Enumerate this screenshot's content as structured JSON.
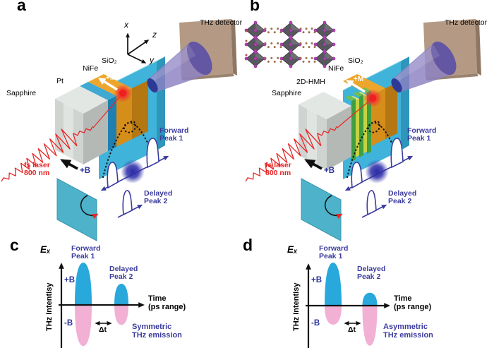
{
  "panels": {
    "a": {
      "letter": "a",
      "thz_detector": "THz detector",
      "axes": {
        "x": "x",
        "y": "y",
        "z": "z"
      },
      "layers": {
        "sio2": "SiO₂",
        "nife": "NiFe",
        "pt": "Pt",
        "sapphire": "Sapphire"
      },
      "magnetization": "+M",
      "laser": [
        "fs laser",
        "800 nm"
      ],
      "field": "+B",
      "forward_peak": [
        "Forward",
        "Peak 1"
      ],
      "delayed_peak": [
        "Delayed",
        "Peak 2"
      ]
    },
    "b": {
      "letter": "b",
      "thz_detector": "THz detector",
      "layers": {
        "sio2": "SiO₂",
        "nife": "NiFe",
        "hmh": "2D-HMH",
        "sapphire": "Sapphire"
      },
      "magnetization": "+M",
      "laser": [
        "fs laser",
        "800 nm"
      ],
      "field": "+B",
      "forward_peak": [
        "Forward",
        "Peak 1"
      ],
      "delayed_peak": [
        "Delayed",
        "Peak 2"
      ]
    },
    "c": {
      "letter": "c",
      "e_field": "Eₓ",
      "ylabel": "THz Intentisy",
      "plus_b": "+B",
      "minus_b": "-B",
      "time": [
        "Time",
        "(ps range)"
      ],
      "delta_t": "Δt",
      "caption": [
        "Symmetric",
        "THz emission"
      ],
      "forward_peak": [
        "Forward",
        "Peak 1"
      ],
      "delayed_peak": [
        "Delayed",
        "Peak 2"
      ]
    },
    "d": {
      "letter": "d",
      "e_field": "Eₓ",
      "ylabel": "THz Intentisy",
      "plus_b": "+B",
      "minus_b": "-B",
      "time": [
        "Time",
        "(ps range)"
      ],
      "delta_t": "Δt",
      "caption": [
        "Asymmetric",
        "THz emission"
      ],
      "forward_peak": [
        "Forward",
        "Peak 1"
      ],
      "delayed_peak": [
        "Delayed",
        "Peak 2"
      ]
    }
  },
  "colors": {
    "sapphire_gray": "#cfd4d1",
    "pt_blue": "#1e7fb0",
    "nife_orange": "#d68e1b",
    "sio2_cyan": "#3fb3d9",
    "hmh_green": "#3f9f40",
    "hmh_yellow_green": "#c6d243",
    "detector_tan": "#b49a85",
    "cone_purple": "#8b80c2",
    "laser_red": "#e62626",
    "pulse_indigo": "#3c3c9e",
    "field_navy": "#2c35a0",
    "peak_cyan": "#29a8dc",
    "peak_pink": "#f2b0d4"
  },
  "chart_data": [
    {
      "type": "area",
      "panel": "c",
      "title": "Symmetric THz emission",
      "xlabel": "Time (ps range)",
      "ylabel": "THz Intentisy",
      "y_axis_symbol": "Eₓ",
      "categories": [
        "Forward Peak 1",
        "Delayed Peak 2"
      ],
      "series": [
        {
          "name": "+B",
          "color": "#29a8dc",
          "values": [
            1.0,
            0.5
          ]
        },
        {
          "name": "-B",
          "color": "#f2b0d4",
          "values": [
            -0.97,
            -0.47
          ]
        }
      ],
      "annotations": [
        "Δt"
      ],
      "grid": false,
      "legend_position": "none"
    },
    {
      "type": "area",
      "panel": "d",
      "title": "Asymmetric THz emission",
      "xlabel": "Time (ps range)",
      "ylabel": "THz Intentisy",
      "y_axis_symbol": "Eₓ",
      "categories": [
        "Forward Peak 1",
        "Delayed Peak 2"
      ],
      "series": [
        {
          "name": "+B",
          "color": "#29a8dc",
          "values": [
            1.0,
            0.3
          ]
        },
        {
          "name": "-B",
          "color": "#f2b0d4",
          "values": [
            -0.44,
            -0.93
          ]
        }
      ],
      "annotations": [
        "Δt"
      ],
      "grid": false,
      "legend_position": "none"
    }
  ]
}
